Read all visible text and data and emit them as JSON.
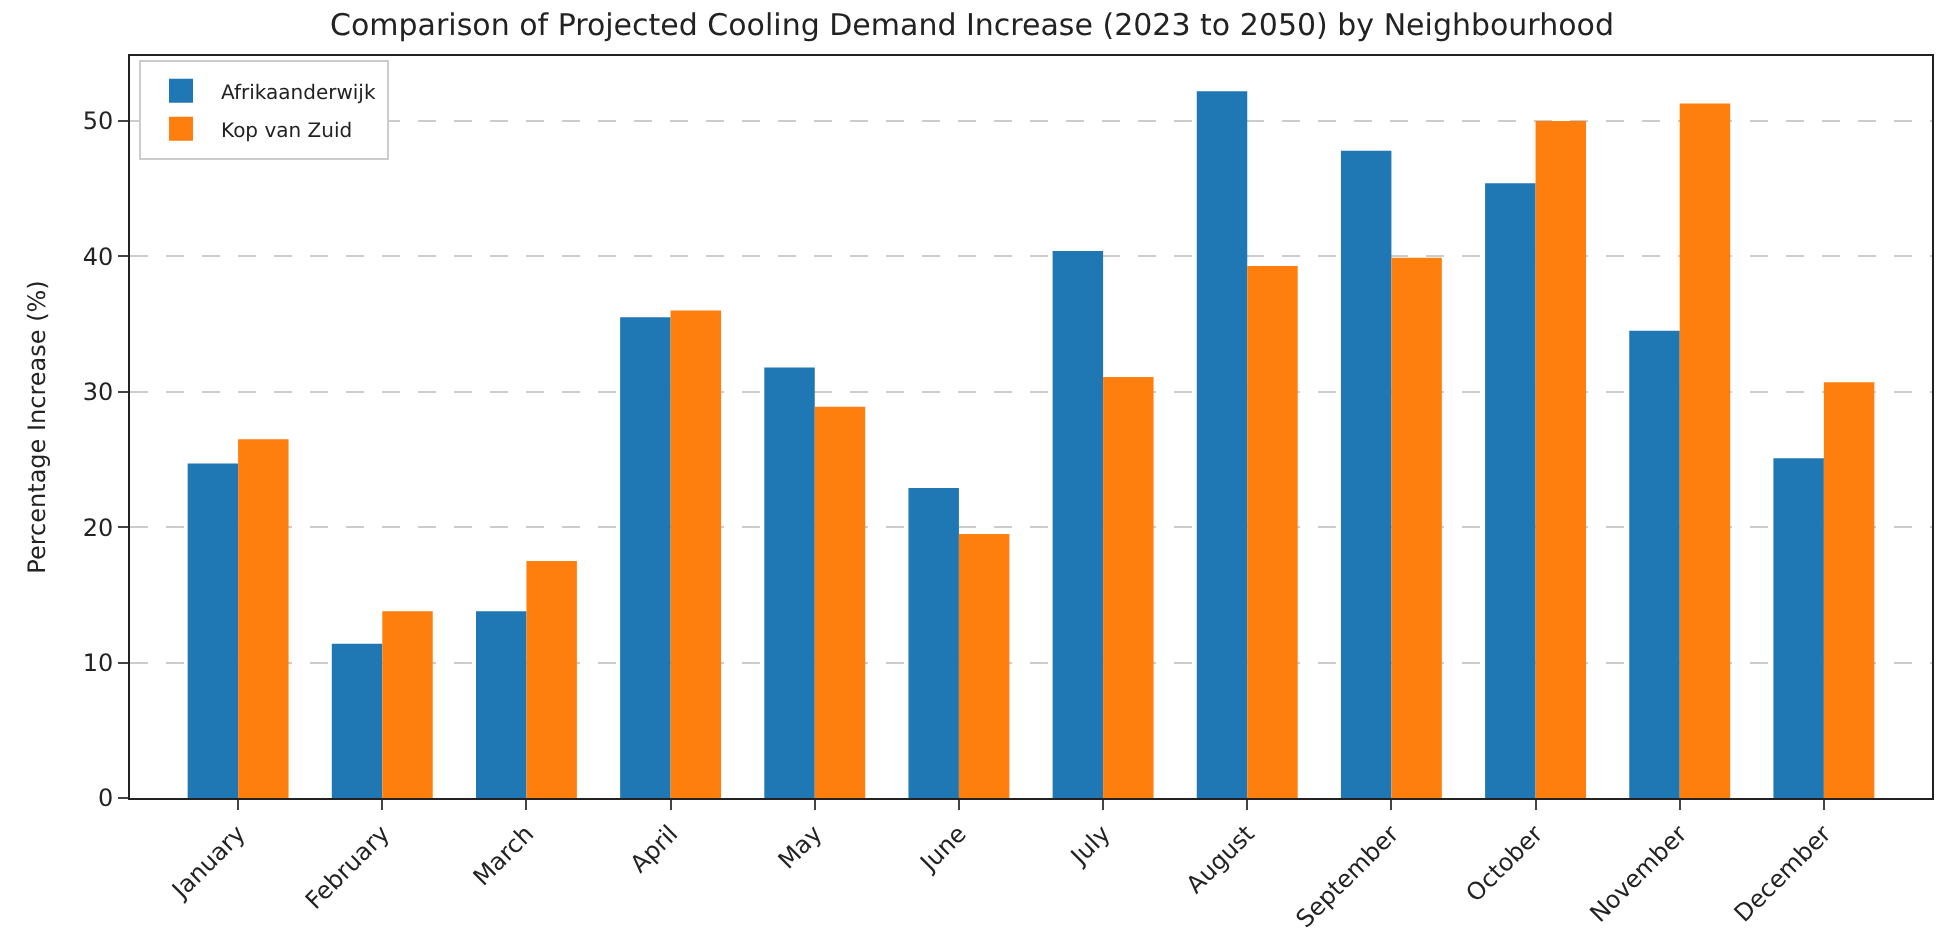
{
  "chart_data": {
    "type": "bar",
    "title": "Comparison of Projected Cooling Demand Increase (2023 to 2050) by Neighbourhood",
    "ylabel": "Percentage Increase (%)",
    "categories": [
      "January",
      "February",
      "March",
      "April",
      "May",
      "June",
      "July",
      "August",
      "September",
      "October",
      "November",
      "December"
    ],
    "series": [
      {
        "name": "Afrikaanderwijk",
        "color": "#1f77b4",
        "values": [
          24.7,
          11.4,
          13.8,
          35.5,
          31.8,
          22.9,
          40.4,
          52.2,
          47.8,
          45.4,
          34.5,
          25.1
        ]
      },
      {
        "name": "Kop van Zuid",
        "color": "#ff7f0e",
        "values": [
          26.5,
          13.8,
          17.5,
          36.0,
          28.9,
          19.5,
          31.1,
          39.3,
          39.9,
          50.0,
          51.3,
          30.7
        ]
      }
    ],
    "ylim": [
      0,
      54.8
    ],
    "yticks": [
      0,
      10,
      20,
      30,
      40,
      50
    ],
    "grid": "y",
    "legend": "top left"
  }
}
